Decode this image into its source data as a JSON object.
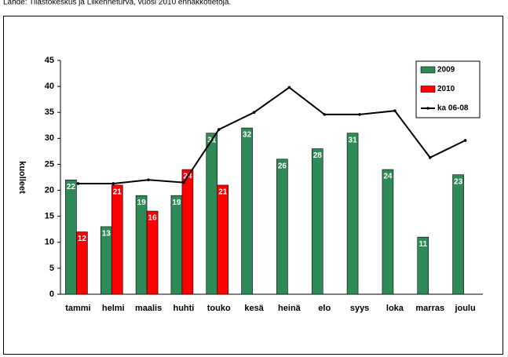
{
  "source": "Lähde: Tilastokeskus ja Liikenneturva, vuosi 2010 ennakkotietoja.",
  "chart_data": {
    "type": "bar",
    "ylabel": "kuolleet",
    "categories": [
      "tammi",
      "helmi",
      "maalis",
      "huhti",
      "touko",
      "kesä",
      "heinä",
      "elo",
      "syys",
      "loka",
      "marras",
      "joulu"
    ],
    "series": [
      {
        "name": "2009",
        "color": "#2e8b57",
        "values": [
          22,
          13,
          19,
          19,
          31,
          32,
          26,
          28,
          31,
          24,
          11,
          23
        ]
      },
      {
        "name": "2010",
        "color": "#ff0000",
        "values": [
          12,
          21,
          16,
          24,
          21,
          null,
          null,
          null,
          null,
          null,
          null,
          null
        ]
      },
      {
        "name": "ka 06-08",
        "color": "#000000",
        "type": "line",
        "values": [
          21.3,
          21.3,
          22,
          21.5,
          31.7,
          35,
          39.8,
          34.6,
          34.6,
          35.3,
          26.3,
          29.6
        ]
      }
    ],
    "ylim": [
      0,
      45
    ],
    "yticks": [
      0,
      5,
      10,
      15,
      20,
      25,
      30,
      35,
      40,
      45
    ],
    "legend": "upper right"
  }
}
